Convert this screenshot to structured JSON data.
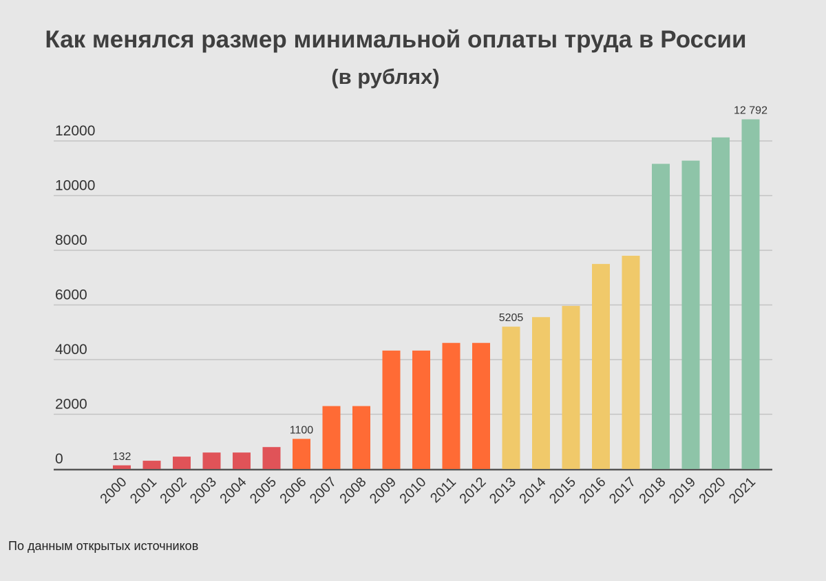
{
  "title": "Как менялся размер минимальной оплаты труда в России",
  "subtitle": "(в рублях)",
  "source": "По данным открытых источников",
  "chart_data": {
    "type": "bar",
    "categories": [
      "2000",
      "2001",
      "2002",
      "2003",
      "2004",
      "2005",
      "2006",
      "2007",
      "2008",
      "2009",
      "2010",
      "2011",
      "2012",
      "2013",
      "2014",
      "2015",
      "2016",
      "2017",
      "2018",
      "2019",
      "2020",
      "2021"
    ],
    "values": [
      132,
      300,
      450,
      600,
      600,
      800,
      1100,
      2300,
      2300,
      4330,
      4330,
      4611,
      4611,
      5205,
      5554,
      5965,
      7500,
      7800,
      11163,
      11280,
      12130,
      12792
    ],
    "colors": [
      "#e05358",
      "#e05358",
      "#e05358",
      "#e05358",
      "#e05358",
      "#e05358",
      "#ff6b35",
      "#ff6b35",
      "#ff6b35",
      "#ff6b35",
      "#ff6b35",
      "#ff6b35",
      "#ff6b35",
      "#f0c96a",
      "#f0c96a",
      "#f0c96a",
      "#f0c96a",
      "#f0c96a",
      "#8ec4a8",
      "#8ec4a8",
      "#8ec4a8",
      "#8ec4a8"
    ],
    "data_labels": {
      "2000": "132",
      "2006": "1100",
      "2013": "5205",
      "2021": "12 792"
    },
    "yticks": [
      0,
      2000,
      4000,
      6000,
      8000,
      10000,
      12000
    ],
    "ylim": [
      0,
      13000
    ],
    "grid": true,
    "xlabel": "",
    "ylabel": ""
  }
}
